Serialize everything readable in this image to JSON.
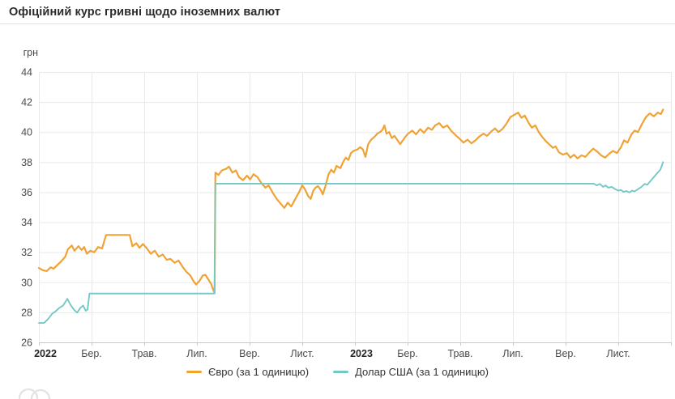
{
  "header": {
    "title": "Офіційний курс гривні щодо іноземних валют"
  },
  "legend": [
    {
      "label": "Євро (за 1 одиницю)",
      "color": "#F0A235"
    },
    {
      "label": "Долар США (за 1 одиницю)",
      "color": "#74C8C5"
    }
  ],
  "colors": {
    "euro": "#F0A235",
    "usd": "#74C8C5",
    "gridline": "#e9e9e9",
    "axis_line": "#c9c9c9",
    "tick_label": "#4a4a4a",
    "year_label": "#262626",
    "watermark": "#e3e3e3"
  },
  "chart_data": {
    "type": "line",
    "title": "Офіційний курс гривні щодо іноземних валют",
    "ylabel": "грн",
    "ylim": [
      26,
      44
    ],
    "y_ticks": [
      26,
      28,
      30,
      32,
      34,
      36,
      38,
      40,
      42,
      44
    ],
    "x_unit": "months since 2022-01-01",
    "x_range_months": [
      0,
      24
    ],
    "grid": true,
    "legend_position": "bottom",
    "x_ticks": [
      {
        "label": "2022",
        "month": 0,
        "bold": true
      },
      {
        "label": "Бер.",
        "month": 2,
        "bold": false
      },
      {
        "label": "Трав.",
        "month": 4,
        "bold": false
      },
      {
        "label": "Лип.",
        "month": 6,
        "bold": false
      },
      {
        "label": "Вер.",
        "month": 8,
        "bold": false
      },
      {
        "label": "Лист.",
        "month": 10,
        "bold": false
      },
      {
        "label": "2023",
        "month": 12,
        "bold": true
      },
      {
        "label": "Бер.",
        "month": 14,
        "bold": false
      },
      {
        "label": "Трав.",
        "month": 16,
        "bold": false
      },
      {
        "label": "Лип.",
        "month": 18,
        "bold": false
      },
      {
        "label": "Вер.",
        "month": 20,
        "bold": false
      },
      {
        "label": "Лист.",
        "month": 22,
        "bold": false
      }
    ],
    "series": [
      {
        "name": "Євро (за 1 одиницю)",
        "color": "#F0A235",
        "points": [
          [
            0,
            30.95
          ],
          [
            0.15,
            30.8
          ],
          [
            0.3,
            30.75
          ],
          [
            0.45,
            31.0
          ],
          [
            0.55,
            30.9
          ],
          [
            0.7,
            31.15
          ],
          [
            0.85,
            31.4
          ],
          [
            1.0,
            31.7
          ],
          [
            1.1,
            32.2
          ],
          [
            1.25,
            32.45
          ],
          [
            1.35,
            32.1
          ],
          [
            1.5,
            32.4
          ],
          [
            1.62,
            32.15
          ],
          [
            1.72,
            32.35
          ],
          [
            1.82,
            31.9
          ],
          [
            1.95,
            32.1
          ],
          [
            2.1,
            32.0
          ],
          [
            2.25,
            32.35
          ],
          [
            2.4,
            32.25
          ],
          [
            2.55,
            33.15
          ],
          [
            3.45,
            33.15
          ],
          [
            3.55,
            32.4
          ],
          [
            3.7,
            32.6
          ],
          [
            3.82,
            32.3
          ],
          [
            3.95,
            32.55
          ],
          [
            4.1,
            32.25
          ],
          [
            4.25,
            31.9
          ],
          [
            4.4,
            32.1
          ],
          [
            4.55,
            31.7
          ],
          [
            4.7,
            31.85
          ],
          [
            4.85,
            31.5
          ],
          [
            5.0,
            31.55
          ],
          [
            5.15,
            31.3
          ],
          [
            5.3,
            31.45
          ],
          [
            5.45,
            31.05
          ],
          [
            5.6,
            30.7
          ],
          [
            5.75,
            30.45
          ],
          [
            5.88,
            30.05
          ],
          [
            5.97,
            29.85
          ],
          [
            6.1,
            30.1
          ],
          [
            6.22,
            30.45
          ],
          [
            6.32,
            30.5
          ],
          [
            6.45,
            30.15
          ],
          [
            6.55,
            29.85
          ],
          [
            6.62,
            29.5
          ],
          [
            6.67,
            29.3
          ],
          [
            6.7,
            37.3
          ],
          [
            6.82,
            37.15
          ],
          [
            6.95,
            37.45
          ],
          [
            7.1,
            37.55
          ],
          [
            7.22,
            37.7
          ],
          [
            7.35,
            37.3
          ],
          [
            7.48,
            37.45
          ],
          [
            7.6,
            37.0
          ],
          [
            7.75,
            36.8
          ],
          [
            7.9,
            37.1
          ],
          [
            8.02,
            36.85
          ],
          [
            8.15,
            37.2
          ],
          [
            8.3,
            37.0
          ],
          [
            8.45,
            36.6
          ],
          [
            8.6,
            36.3
          ],
          [
            8.72,
            36.45
          ],
          [
            8.9,
            35.9
          ],
          [
            9.05,
            35.5
          ],
          [
            9.2,
            35.2
          ],
          [
            9.32,
            34.95
          ],
          [
            9.45,
            35.3
          ],
          [
            9.58,
            35.05
          ],
          [
            9.72,
            35.5
          ],
          [
            9.88,
            36.0
          ],
          [
            10.0,
            36.45
          ],
          [
            10.1,
            36.2
          ],
          [
            10.22,
            35.75
          ],
          [
            10.32,
            35.55
          ],
          [
            10.42,
            36.1
          ],
          [
            10.5,
            36.3
          ],
          [
            10.6,
            36.4
          ],
          [
            10.7,
            36.15
          ],
          [
            10.78,
            35.85
          ],
          [
            10.88,
            36.4
          ],
          [
            11.0,
            37.2
          ],
          [
            11.1,
            37.5
          ],
          [
            11.2,
            37.3
          ],
          [
            11.3,
            37.75
          ],
          [
            11.45,
            37.6
          ],
          [
            11.55,
            38.0
          ],
          [
            11.65,
            38.3
          ],
          [
            11.75,
            38.15
          ],
          [
            11.85,
            38.6
          ],
          [
            11.95,
            38.75
          ],
          [
            12.1,
            38.85
          ],
          [
            12.2,
            39.0
          ],
          [
            12.3,
            38.85
          ],
          [
            12.4,
            38.35
          ],
          [
            12.5,
            39.2
          ],
          [
            12.62,
            39.5
          ],
          [
            12.75,
            39.7
          ],
          [
            12.85,
            39.9
          ],
          [
            12.95,
            40.0
          ],
          [
            13.05,
            40.15
          ],
          [
            13.12,
            40.45
          ],
          [
            13.2,
            39.9
          ],
          [
            13.3,
            40.0
          ],
          [
            13.4,
            39.6
          ],
          [
            13.5,
            39.75
          ],
          [
            13.6,
            39.5
          ],
          [
            13.72,
            39.2
          ],
          [
            13.88,
            39.6
          ],
          [
            14.02,
            39.9
          ],
          [
            14.18,
            40.1
          ],
          [
            14.32,
            39.85
          ],
          [
            14.48,
            40.2
          ],
          [
            14.62,
            39.95
          ],
          [
            14.78,
            40.3
          ],
          [
            14.92,
            40.15
          ],
          [
            15.05,
            40.45
          ],
          [
            15.2,
            40.6
          ],
          [
            15.35,
            40.3
          ],
          [
            15.5,
            40.45
          ],
          [
            15.65,
            40.1
          ],
          [
            15.82,
            39.8
          ],
          [
            15.98,
            39.55
          ],
          [
            16.12,
            39.3
          ],
          [
            16.28,
            39.5
          ],
          [
            16.42,
            39.25
          ],
          [
            16.58,
            39.45
          ],
          [
            16.72,
            39.7
          ],
          [
            16.88,
            39.9
          ],
          [
            17.02,
            39.75
          ],
          [
            17.18,
            40.05
          ],
          [
            17.32,
            40.25
          ],
          [
            17.45,
            40.0
          ],
          [
            17.6,
            40.2
          ],
          [
            17.75,
            40.55
          ],
          [
            17.9,
            41.0
          ],
          [
            18.05,
            41.15
          ],
          [
            18.2,
            41.3
          ],
          [
            18.32,
            40.95
          ],
          [
            18.45,
            41.1
          ],
          [
            18.6,
            40.6
          ],
          [
            18.72,
            40.3
          ],
          [
            18.85,
            40.45
          ],
          [
            18.98,
            40.0
          ],
          [
            19.1,
            39.7
          ],
          [
            19.25,
            39.4
          ],
          [
            19.4,
            39.15
          ],
          [
            19.52,
            38.95
          ],
          [
            19.62,
            39.05
          ],
          [
            19.75,
            38.65
          ],
          [
            19.9,
            38.5
          ],
          [
            20.05,
            38.6
          ],
          [
            20.18,
            38.3
          ],
          [
            20.32,
            38.5
          ],
          [
            20.45,
            38.25
          ],
          [
            20.6,
            38.45
          ],
          [
            20.75,
            38.35
          ],
          [
            20.9,
            38.65
          ],
          [
            21.05,
            38.9
          ],
          [
            21.2,
            38.7
          ],
          [
            21.35,
            38.45
          ],
          [
            21.5,
            38.3
          ],
          [
            21.65,
            38.55
          ],
          [
            21.8,
            38.75
          ],
          [
            21.95,
            38.6
          ],
          [
            22.1,
            39.0
          ],
          [
            22.22,
            39.45
          ],
          [
            22.35,
            39.3
          ],
          [
            22.5,
            39.85
          ],
          [
            22.62,
            40.1
          ],
          [
            22.75,
            40.0
          ],
          [
            22.9,
            40.55
          ],
          [
            23.05,
            41.0
          ],
          [
            23.2,
            41.25
          ],
          [
            23.35,
            41.05
          ],
          [
            23.5,
            41.3
          ],
          [
            23.62,
            41.2
          ],
          [
            23.7,
            41.5
          ]
        ]
      },
      {
        "name": "Долар США (за 1 одиницю)",
        "color": "#74C8C5",
        "points": [
          [
            0,
            27.28
          ],
          [
            0.2,
            27.3
          ],
          [
            0.35,
            27.55
          ],
          [
            0.5,
            27.9
          ],
          [
            0.62,
            28.05
          ],
          [
            0.78,
            28.3
          ],
          [
            0.92,
            28.45
          ],
          [
            1.08,
            28.9
          ],
          [
            1.2,
            28.5
          ],
          [
            1.32,
            28.2
          ],
          [
            1.45,
            27.98
          ],
          [
            1.58,
            28.3
          ],
          [
            1.68,
            28.45
          ],
          [
            1.78,
            28.1
          ],
          [
            1.85,
            28.2
          ],
          [
            1.92,
            29.25
          ],
          [
            6.67,
            29.25
          ],
          [
            6.7,
            36.57
          ],
          [
            21.07,
            36.57
          ],
          [
            21.18,
            36.45
          ],
          [
            21.3,
            36.55
          ],
          [
            21.42,
            36.35
          ],
          [
            21.52,
            36.45
          ],
          [
            21.62,
            36.3
          ],
          [
            21.75,
            36.35
          ],
          [
            21.88,
            36.2
          ],
          [
            22.0,
            36.1
          ],
          [
            22.1,
            36.15
          ],
          [
            22.2,
            36.02
          ],
          [
            22.3,
            36.08
          ],
          [
            22.42,
            35.98
          ],
          [
            22.52,
            36.1
          ],
          [
            22.62,
            36.05
          ],
          [
            22.75,
            36.2
          ],
          [
            22.88,
            36.35
          ],
          [
            23.0,
            36.55
          ],
          [
            23.1,
            36.5
          ],
          [
            23.2,
            36.7
          ],
          [
            23.3,
            36.9
          ],
          [
            23.42,
            37.15
          ],
          [
            23.52,
            37.35
          ],
          [
            23.6,
            37.5
          ],
          [
            23.7,
            38.0
          ]
        ]
      }
    ]
  }
}
